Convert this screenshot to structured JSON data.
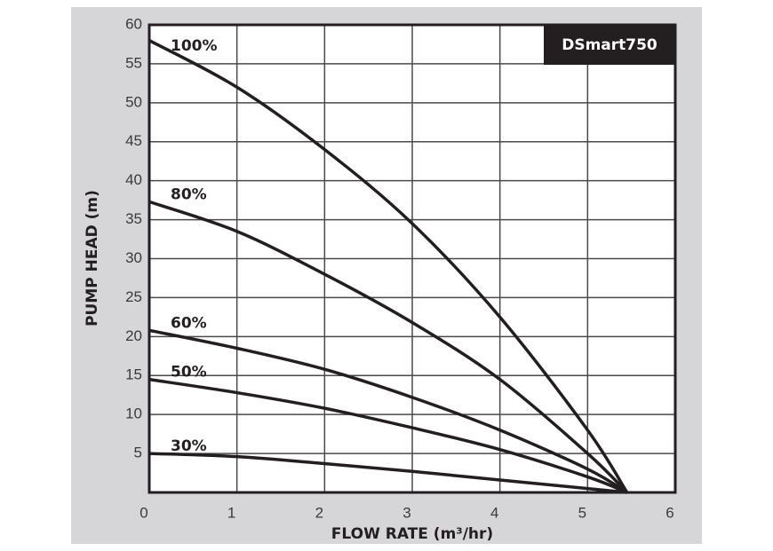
{
  "chart_data": {
    "type": "line",
    "title": "DSmart750",
    "x_label": "FLOW RATE (m³/hr)",
    "y_label": "PUMP HEAD (m)",
    "x": [
      0,
      1,
      2,
      3,
      4,
      5,
      5.45
    ],
    "series": [
      {
        "name": "100%",
        "color": "#231f20",
        "values": [
          58,
          52,
          44,
          34.5,
          22.5,
          8,
          0
        ]
      },
      {
        "name": "80%",
        "color": "#231f20",
        "values": [
          37.3,
          33.5,
          28,
          21.8,
          14.5,
          5,
          0
        ]
      },
      {
        "name": "60%",
        "color": "#231f20",
        "values": [
          20.8,
          18.5,
          15.8,
          12.2,
          8,
          3,
          0
        ]
      },
      {
        "name": "50%",
        "color": "#231f20",
        "values": [
          14.5,
          12.8,
          10.8,
          8.3,
          5.5,
          2,
          0
        ]
      },
      {
        "name": "30%",
        "color": "#231f20",
        "values": [
          5,
          4.6,
          3.7,
          2.7,
          1.6,
          0.5,
          0
        ]
      }
    ],
    "xlim": [
      0,
      6
    ],
    "xticks": [
      0,
      1,
      2,
      3,
      4,
      5,
      6
    ],
    "ylim": [
      0,
      60
    ],
    "yticks": [
      5,
      10,
      15,
      20,
      25,
      30,
      35,
      40,
      45,
      50,
      55,
      60
    ],
    "grid": true
  }
}
